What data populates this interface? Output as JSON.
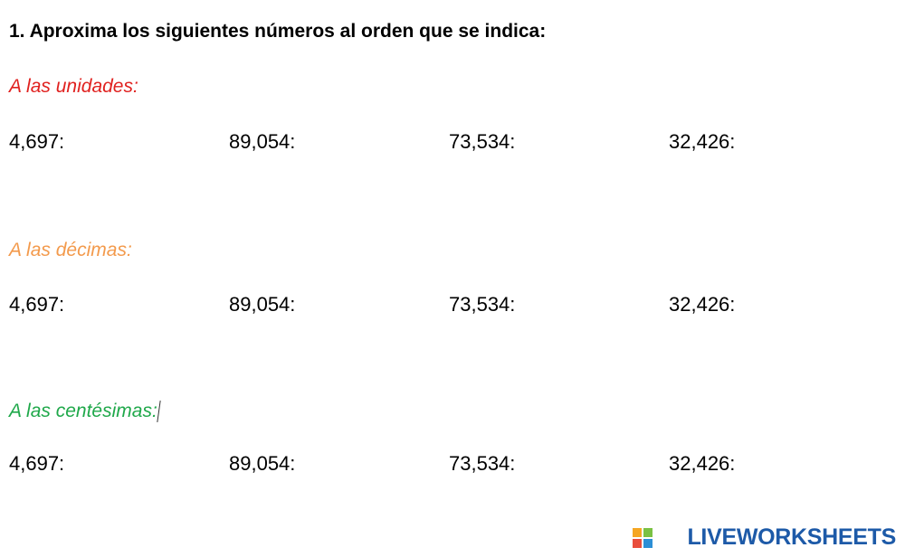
{
  "title": "1. Aproxima los siguientes números al orden que se indica:",
  "sections": [
    {
      "heading": "A las unidades:",
      "color": "#e0211f",
      "items": [
        "4,697:",
        "89,054:",
        "73,534:",
        "32,426:"
      ]
    },
    {
      "heading": "A las décimas:",
      "color": "#f39a4c",
      "items": [
        "4,697:",
        "89,054:",
        "73,534:",
        "32,426:"
      ]
    },
    {
      "heading": "A las centésimas:",
      "color": "#1fa84a",
      "items": [
        "4,697:",
        "89,054:",
        "73,534:",
        "32,426:"
      ]
    }
  ],
  "logo": "LIVEWORKSHEETS"
}
